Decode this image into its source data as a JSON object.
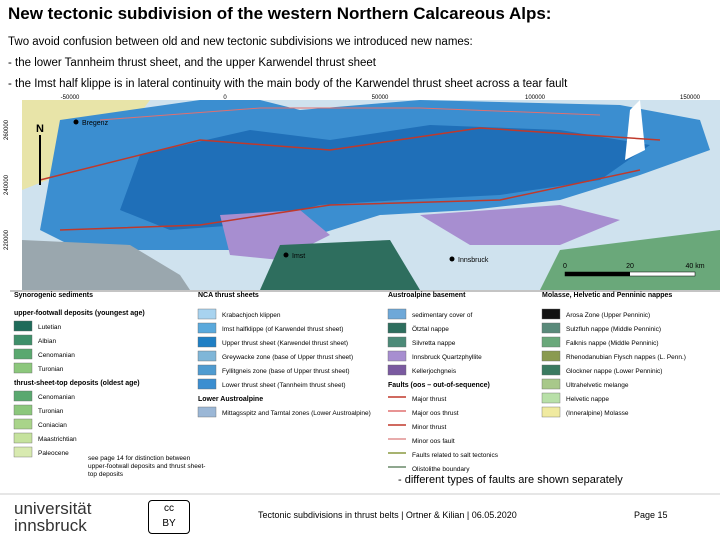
{
  "header": {
    "title": "New tectonic subdivision of the western Northern Calcareous Alps:",
    "lines": [
      "Two avoid confusion between old and new tectonic subdivisions we introduced new names:",
      "- the lower Tannheim thrust sheet, and the upper Karwendel thrust sheet",
      "- the Imst half klippe is in lateral continuity with the main body of the Karwendel thrust sheet across a tear fault"
    ]
  },
  "map": {
    "x_labels": [
      "-50000",
      "0",
      "50000",
      "100000",
      "150000"
    ],
    "y_labels": [
      "260000",
      "240000",
      "220000"
    ],
    "north": "N",
    "places": [
      "Bregenz",
      "Innsbruck",
      "Imst"
    ],
    "scale": [
      "0",
      "20",
      "40 km"
    ]
  },
  "legend": {
    "columns": [
      {
        "title": "Synorogenic sediments",
        "groups": [
          {
            "title": "upper-footwall deposits (youngest age)",
            "items": [
              {
                "label": "Lutetian",
                "color": "#1f6b5a"
              },
              {
                "label": "Albian",
                "color": "#3f8f6a"
              },
              {
                "label": "Cenomanian",
                "color": "#5aa86f"
              },
              {
                "label": "Turonian",
                "color": "#8cc77c"
              }
            ]
          },
          {
            "title": "thrust-sheet-top deposits (oldest age)",
            "items": [
              {
                "label": "Cenomanian",
                "color": "#5aa86f"
              },
              {
                "label": "Turonian",
                "color": "#8cc77c"
              },
              {
                "label": "Coniacian",
                "color": "#a9d48a"
              },
              {
                "label": "Maastrichtian",
                "color": "#c5e29d"
              },
              {
                "label": "Paleocene",
                "color": "#d8eab0"
              }
            ]
          }
        ]
      },
      {
        "title": "NCA thrust sheets",
        "groups": [
          {
            "title": null,
            "items": [
              {
                "label": "Krabachjoch klippen",
                "color": "#a8d3ef"
              },
              {
                "label": "Imst halfklippe (of Karwendel thrust sheet)",
                "color": "#5aa9dc"
              },
              {
                "label": "Upper thrust sheet (Karwendel thrust sheet)",
                "color": "#1f7fc4"
              },
              {
                "label": "Greywacke zone (base of Upper thrust sheet)",
                "color": "#7fb6d8"
              },
              {
                "label": "Fyllitgneis zone (base of Upper thrust sheet)",
                "color": "#4f9bd0"
              },
              {
                "label": "Lower thrust sheet (Tannheim thrust sheet)",
                "color": "#3b8ed0"
              }
            ]
          },
          {
            "title": "Lower Austroalpine",
            "items": [
              {
                "label": "Mittagsspitz and Tarntal zones (Lower Austroalpine)",
                "color": "#9bb7d6"
              }
            ]
          }
        ]
      },
      {
        "title": "Austroalpine basement",
        "groups": [
          {
            "title": null,
            "items": [
              {
                "label": "sedimentary cover of",
                "color": "#6ea8d8"
              },
              {
                "label": "Ötztal nappe",
                "color": "#2e6e5e"
              },
              {
                "label": "Silvretta nappe",
                "color": "#4c8a78"
              },
              {
                "label": "Innsbruck Quartzphyllite",
                "color": "#a78ed0"
              },
              {
                "label": "Kellerjochgneis",
                "color": "#7a5aa0"
              }
            ]
          },
          {
            "title": "Faults (oos – out-of-sequence)",
            "items": [
              {
                "label": "Major thrust",
                "color": "#c0392b"
              },
              {
                "label": "Major oos thrust",
                "color": "#e07070"
              },
              {
                "label": "Minor thrust",
                "color": "#c0392b"
              },
              {
                "label": "Minor oos fault",
                "color": "#e09090"
              },
              {
                "label": "Faults related to salt tectonics",
                "color": "#8a9a40"
              },
              {
                "label": "Olistolithe boundary",
                "color": "#6a8a6a"
              }
            ]
          }
        ]
      },
      {
        "title": "Molasse, Helvetic and Penninic nappes",
        "groups": [
          {
            "title": null,
            "items": [
              {
                "label": "Arosa Zone (Upper Penninic)",
                "color": "#111111"
              },
              {
                "label": "Sulzfluh nappe (Middle Penninic)",
                "color": "#5a8a7a"
              },
              {
                "label": "Falknis nappe (Middle Penninic)",
                "color": "#6aa87a"
              },
              {
                "label": "Rhenodanubian Flysch nappes (L. Penn.)",
                "color": "#8a9a50"
              },
              {
                "label": "Glockner nappe (Lower Penninic)",
                "color": "#3a7a60"
              },
              {
                "label": "Ultrahelvetic melange",
                "color": "#a8c88a"
              },
              {
                "label": "Helvetic nappe",
                "color": "#b8e0a8"
              },
              {
                "label": "(Inneralpine) Molasse",
                "color": "#f0eaa0"
              }
            ]
          }
        ]
      }
    ],
    "note": "see page 14 for distinction between upper-footwall deposits and thrust sheet-top deposits",
    "remark": "- different types of faults are shown separately"
  },
  "footer": {
    "logo": [
      "universität",
      "innsbruck"
    ],
    "license": [
      "cc",
      "BY"
    ],
    "citation": "Tectonic subdivisions in thrust belts | Ortner & Kilian | 06.05.2020",
    "page": "Page 15"
  }
}
